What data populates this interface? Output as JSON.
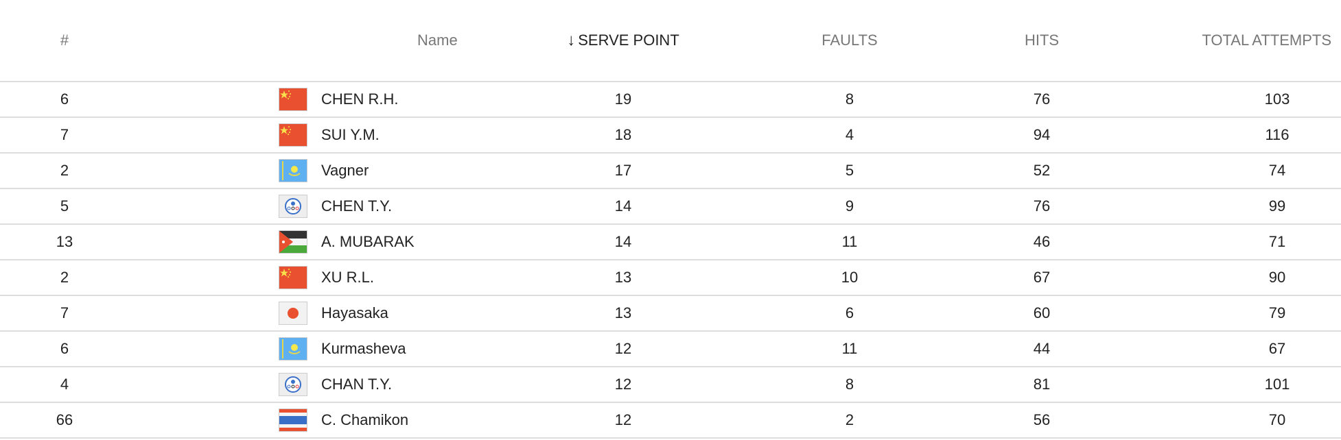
{
  "columns": {
    "rank": "#",
    "name": "Name",
    "serve_point": "SERVE POINT",
    "faults": "FAULTS",
    "hits": "HITS",
    "total_attempts": "TOTAL ATTEMPTS"
  },
  "sort": {
    "column": "serve_point",
    "direction": "descending",
    "icon": "arrow-down-icon"
  },
  "rows": [
    {
      "rank": "6",
      "flag": "china",
      "name": "CHEN R.H.",
      "serve_point": "19",
      "faults": "8",
      "hits": "76",
      "total_attempts": "103"
    },
    {
      "rank": "7",
      "flag": "china",
      "name": "SUI Y.M.",
      "serve_point": "18",
      "faults": "4",
      "hits": "94",
      "total_attempts": "116"
    },
    {
      "rank": "2",
      "flag": "kazakhstan",
      "name": "Vagner",
      "serve_point": "17",
      "faults": "5",
      "hits": "52",
      "total_attempts": "74"
    },
    {
      "rank": "5",
      "flag": "chinese-taipei",
      "name": "CHEN T.Y.",
      "serve_point": "14",
      "faults": "9",
      "hits": "76",
      "total_attempts": "99"
    },
    {
      "rank": "13",
      "flag": "jordan",
      "name": "A. MUBARAK",
      "serve_point": "14",
      "faults": "11",
      "hits": "46",
      "total_attempts": "71"
    },
    {
      "rank": "2",
      "flag": "china",
      "name": "XU R.L.",
      "serve_point": "13",
      "faults": "10",
      "hits": "67",
      "total_attempts": "90"
    },
    {
      "rank": "7",
      "flag": "japan",
      "name": "Hayasaka",
      "serve_point": "13",
      "faults": "6",
      "hits": "60",
      "total_attempts": "79"
    },
    {
      "rank": "6",
      "flag": "kazakhstan",
      "name": "Kurmasheva",
      "serve_point": "12",
      "faults": "11",
      "hits": "44",
      "total_attempts": "67"
    },
    {
      "rank": "4",
      "flag": "chinese-taipei",
      "name": "CHAN T.Y.",
      "serve_point": "12",
      "faults": "8",
      "hits": "81",
      "total_attempts": "101"
    },
    {
      "rank": "66",
      "flag": "thailand",
      "name": "C. Chamikon",
      "serve_point": "12",
      "faults": "2",
      "hits": "56",
      "total_attempts": "70"
    }
  ]
}
